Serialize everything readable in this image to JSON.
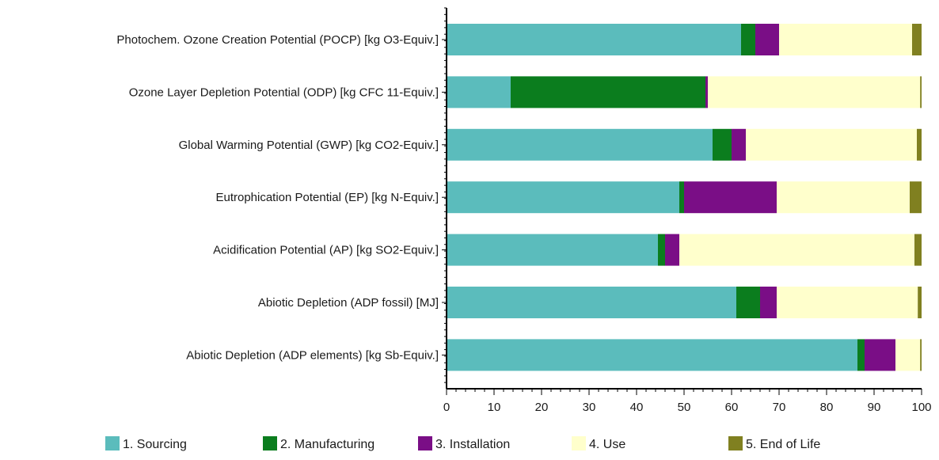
{
  "chart_data": {
    "type": "bar",
    "orientation": "horizontal",
    "stacked": true,
    "title": "",
    "xlabel": "",
    "ylabel": "",
    "xlim": [
      0,
      100
    ],
    "xticks": [
      0,
      10,
      20,
      30,
      40,
      50,
      60,
      70,
      80,
      90,
      100
    ],
    "grid": false,
    "legend_position": "bottom",
    "categories": [
      "Photochem. Ozone Creation Potential (POCP) [kg O3-Equiv.]",
      "Ozone Layer Depletion Potential (ODP) [kg CFC 11-Equiv.]",
      "Global Warming Potential (GWP) [kg CO2-Equiv.]",
      "Eutrophication Potential (EP) [kg N-Equiv.]",
      "Acidification Potential (AP) [kg SO2-Equiv.]",
      "Abiotic Depletion (ADP fossil) [MJ]",
      "Abiotic Depletion (ADP elements) [kg Sb-Equiv.]"
    ],
    "series": [
      {
        "name": "1. Sourcing",
        "color": "#5bbcbc",
        "values": [
          62,
          13.5,
          56,
          49,
          44.5,
          61,
          86.5
        ]
      },
      {
        "name": "2. Manufacturing",
        "color": "#0b7d1e",
        "values": [
          3,
          41,
          4,
          1,
          1.5,
          5,
          1.5
        ]
      },
      {
        "name": "3. Installation",
        "color": "#7a0e86",
        "values": [
          5,
          0.5,
          3,
          19.5,
          3,
          3.5,
          6.5
        ]
      },
      {
        "name": "4. Use",
        "color": "#ffffcc",
        "values": [
          28,
          44.7,
          36,
          28,
          49.5,
          29.7,
          5.2
        ]
      },
      {
        "name": "5. End of Life",
        "color": "#808020",
        "values": [
          2,
          0.3,
          1,
          2.5,
          1.5,
          0.8,
          0.3
        ]
      }
    ]
  }
}
